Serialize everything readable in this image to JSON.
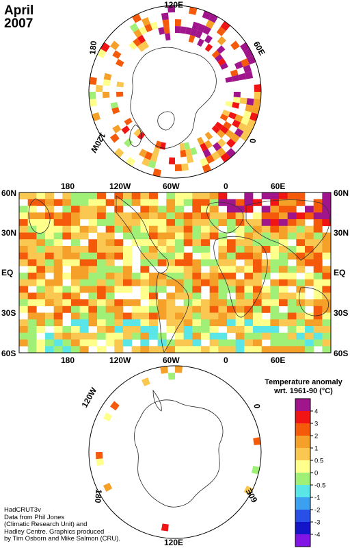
{
  "title": {
    "month": "April",
    "year": "2007"
  },
  "north_polar": {
    "labels": [
      "120E",
      "60E",
      "0",
      "120W",
      "180"
    ]
  },
  "equirect": {
    "top_longitudes": [
      "180",
      "120W",
      "60W",
      "0",
      "60E"
    ],
    "bottom_longitudes": [
      "180",
      "120W",
      "60W",
      "0",
      "60E"
    ],
    "left_latitudes": [
      "60N",
      "30N",
      "EQ",
      "30S",
      "60S"
    ],
    "right_latitudes": [
      "60N",
      "30N",
      "EQ",
      "30S",
      "60S"
    ]
  },
  "south_polar": {
    "labels": [
      "120W",
      "0",
      "60E",
      "120E",
      "180"
    ]
  },
  "legend": {
    "title_line1": "Temperature anomaly",
    "title_line2": "wrt. 1961-90  (°C)",
    "ticks": [
      "4",
      "3",
      "2",
      "1",
      "0.5",
      "0",
      "-0.5",
      "-1",
      "-2",
      "-3",
      "-4"
    ],
    "colors": [
      "#a0148c",
      "#f01414",
      "#f55a0a",
      "#f5a028",
      "#fac850",
      "#ffff8c",
      "#a0f078",
      "#5ae6e6",
      "#3ca0f0",
      "#2850e6",
      "#1414c8",
      "#8214e6"
    ]
  },
  "credits": [
    "HadCRUT3v",
    "Data from Phil Jones",
    "(Climatic Research Unit) and",
    "Hadley Centre.  Graphics produced",
    "by Tim Osborn and Mike Salmon (CRU)."
  ]
}
